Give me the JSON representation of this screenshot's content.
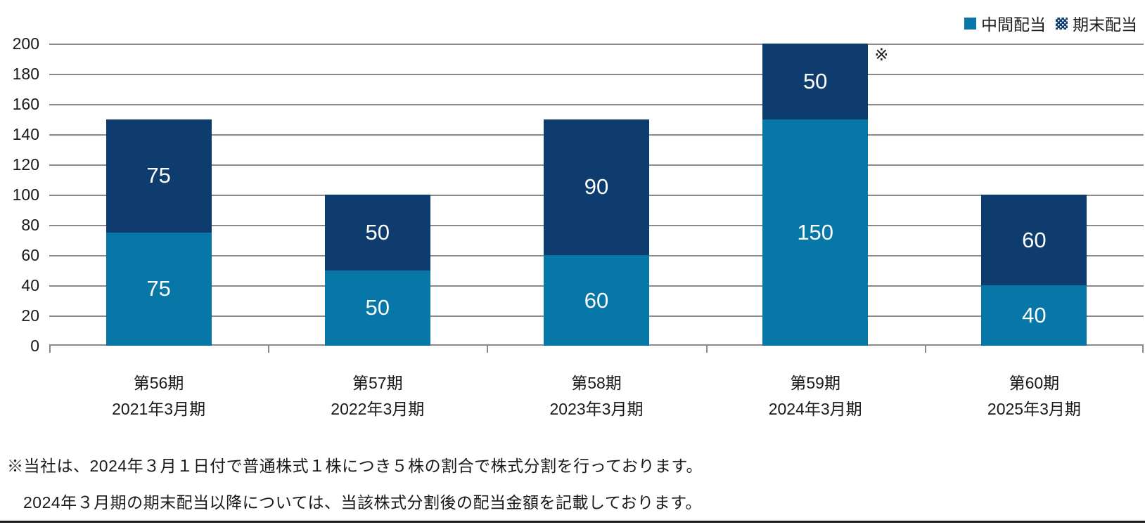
{
  "chart_data": {
    "type": "bar",
    "stacked": true,
    "categories": [
      {
        "line1": "第56期",
        "line2": "2021年3月期"
      },
      {
        "line1": "第57期",
        "line2": "2022年3月期"
      },
      {
        "line1": "第58期",
        "line2": "2023年3月期"
      },
      {
        "line1": "第59期",
        "line2": "2024年3月期"
      },
      {
        "line1": "第60期",
        "line2": "2025年3月期"
      }
    ],
    "series": [
      {
        "name": "中間配当",
        "values": [
          75,
          50,
          60,
          150,
          40
        ],
        "color": "#0777A8",
        "pattern": "solid"
      },
      {
        "name": "期末配当",
        "values": [
          75,
          50,
          90,
          50,
          60
        ],
        "color": "#0E3C6E",
        "pattern": "dots"
      }
    ],
    "totals": [
      150,
      100,
      150,
      200,
      100
    ],
    "ylim": [
      0,
      200
    ],
    "yticks": [
      0,
      20,
      40,
      60,
      80,
      100,
      120,
      140,
      160,
      180,
      200
    ],
    "grid": true,
    "legend_position": "top-right",
    "annotation": {
      "text": "※",
      "category_index": 3
    }
  },
  "footnote": {
    "line1": "※当社は、2024年３月１日付で普通株式１株につき５株の割合で株式分割を行っております。",
    "line2": "2024年３月期の期末配当以降については、当該株式分割後の配当金額を記載しております。"
  },
  "colors": {
    "interim": "#0777A8",
    "yearend": "#0E3C6E",
    "gridline": "#8A8A8A",
    "text": "#1A1A1A",
    "bar_label": "#FFFFFF",
    "bottom_rule": "#1A1A1A"
  }
}
